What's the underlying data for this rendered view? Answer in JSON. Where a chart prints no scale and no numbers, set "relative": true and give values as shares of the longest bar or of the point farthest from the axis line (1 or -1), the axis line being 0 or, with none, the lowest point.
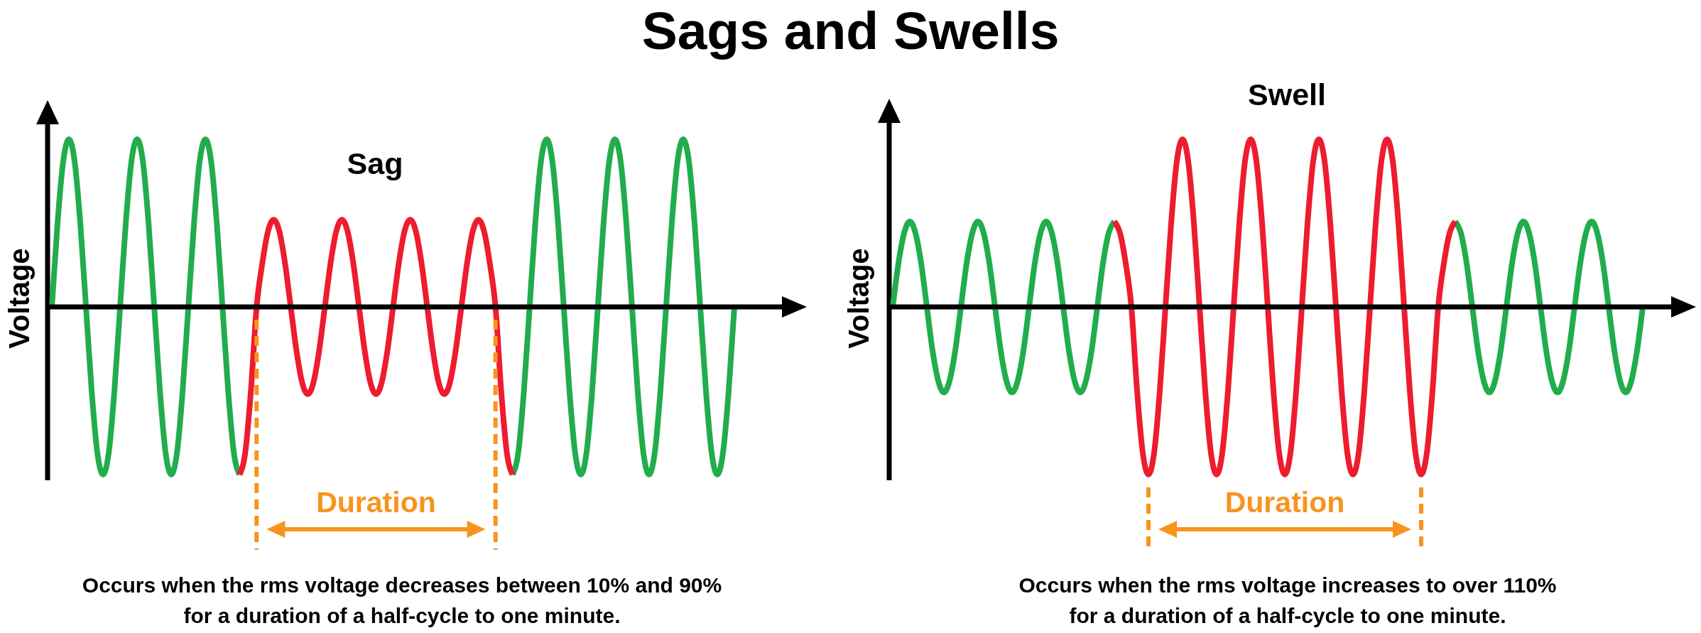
{
  "chart_data": [
    {
      "type": "other",
      "title": "Sags and Swells"
    },
    {
      "type": "line",
      "title": "Sag",
      "ylabel": "Voltage",
      "relative": true,
      "categories": [
        null,
        null,
        null,
        null,
        null,
        null,
        null,
        null,
        null,
        null,
        null,
        null,
        null,
        null,
        null,
        null,
        null,
        null,
        null,
        null,
        null,
        null,
        null,
        null,
        null,
        null,
        null,
        null,
        null,
        null,
        null,
        null,
        null,
        null,
        null,
        null,
        null,
        null,
        null,
        null,
        null,
        null,
        null,
        null,
        null,
        null,
        null,
        null,
        null,
        null,
        null,
        null,
        null,
        null,
        null,
        null,
        null,
        null,
        null,
        null,
        null,
        null,
        null,
        null,
        null,
        null,
        null,
        null,
        null,
        null,
        null,
        null,
        null,
        null,
        null,
        null,
        null,
        null,
        null,
        null,
        null,
        null,
        null,
        null,
        null,
        null,
        null,
        null,
        null,
        null,
        null,
        null,
        null,
        null,
        null,
        null,
        null,
        null,
        null,
        null,
        null,
        null,
        null,
        null,
        null,
        null,
        null,
        null,
        null,
        null,
        null,
        null,
        null,
        null,
        null,
        null,
        null,
        null,
        null,
        null,
        null
      ],
      "series": [
        {
          "color": "#21ad4b",
          "values": [
            0,
            0.5,
            0.87,
            1,
            0.87,
            0.5,
            0,
            -0.5,
            -0.87,
            -1,
            -0.87,
            -0.5,
            0,
            0.5,
            0.87,
            1,
            0.87,
            0.5,
            0,
            -0.5,
            -0.87,
            -1,
            -0.87,
            -0.5,
            0,
            0.5,
            0.87,
            1,
            0.87,
            0.5,
            0,
            -0.5,
            -0.87,
            -1,
            null,
            null,
            null,
            null,
            null,
            null,
            null,
            null,
            null,
            null,
            null,
            null,
            null,
            null,
            null,
            null,
            null,
            null,
            null,
            null,
            null,
            null,
            null,
            null,
            null,
            null,
            null,
            null,
            null,
            null,
            null,
            null,
            null,
            null,
            null,
            null,
            null,
            null,
            null,
            null,
            null,
            null,
            null,
            null,
            null,
            null,
            null,
            -1,
            -0.87,
            -0.5,
            0,
            0.5,
            0.87,
            1,
            0.87,
            0.5,
            0,
            -0.5,
            -0.87,
            -1,
            -0.87,
            -0.5,
            0,
            0.5,
            0.87,
            1,
            0.87,
            0.5,
            0,
            -0.5,
            -0.87,
            -1,
            -0.87,
            -0.5,
            0,
            0.5,
            0.87,
            1,
            0.87,
            0.5,
            0,
            -0.5,
            -0.87,
            -1,
            -0.87,
            -0.5,
            0
          ]
        },
        {
          "color": "#ed1c2e",
          "values": [
            null,
            null,
            null,
            null,
            null,
            null,
            null,
            null,
            null,
            null,
            null,
            null,
            null,
            null,
            null,
            null,
            null,
            null,
            null,
            null,
            null,
            null,
            null,
            null,
            null,
            null,
            null,
            null,
            null,
            null,
            null,
            null,
            null,
            -1,
            -0.87,
            -0.5,
            0,
            0.26,
            0.45,
            0.52,
            0.45,
            0.26,
            0,
            -0.26,
            -0.45,
            -0.52,
            -0.45,
            -0.26,
            0,
            0.26,
            0.45,
            0.52,
            0.45,
            0.26,
            0,
            -0.26,
            -0.45,
            -0.52,
            -0.45,
            -0.26,
            0,
            0.26,
            0.45,
            0.52,
            0.45,
            0.26,
            0,
            -0.26,
            -0.45,
            -0.52,
            -0.45,
            -0.26,
            0,
            0.26,
            0.45,
            0.52,
            0.45,
            0.26,
            0,
            -0.5,
            -0.87,
            -1,
            null,
            null,
            null,
            null,
            null,
            null,
            null,
            null,
            null,
            null,
            null,
            null,
            null,
            null,
            null,
            null,
            null,
            null,
            null,
            null,
            null,
            null,
            null,
            null,
            null,
            null,
            null,
            null,
            null,
            null,
            null,
            null,
            null,
            null,
            null,
            null,
            null,
            null,
            null
          ]
        }
      ],
      "annotations": [
        "Duration",
        "Occurs when the rms voltage decreases between 10% and 90%\nfor a duration of a half-cycle to one minute."
      ]
    },
    {
      "type": "line",
      "title": "Swell",
      "ylabel": "Voltage",
      "relative": true,
      "categories": [
        null,
        null,
        null,
        null,
        null,
        null,
        null,
        null,
        null,
        null,
        null,
        null,
        null,
        null,
        null,
        null,
        null,
        null,
        null,
        null,
        null,
        null,
        null,
        null,
        null,
        null,
        null,
        null,
        null,
        null,
        null,
        null,
        null,
        null,
        null,
        null,
        null,
        null,
        null,
        null,
        null,
        null,
        null,
        null,
        null,
        null,
        null,
        null,
        null,
        null,
        null,
        null,
        null,
        null,
        null,
        null,
        null,
        null,
        null,
        null,
        null,
        null,
        null,
        null,
        null,
        null,
        null,
        null,
        null,
        null,
        null,
        null,
        null,
        null,
        null,
        null,
        null,
        null,
        null,
        null,
        null,
        null,
        null,
        null,
        null,
        null,
        null,
        null,
        null,
        null,
        null,
        null,
        null,
        null,
        null,
        null,
        null,
        null,
        null,
        null,
        null,
        null,
        null,
        null,
        null,
        null,
        null,
        null,
        null,
        null,
        null,
        null,
        null,
        null,
        null,
        null,
        null,
        null,
        null,
        null,
        null,
        null,
        null,
        null,
        null,
        null,
        null,
        null,
        null,
        null,
        null,
        null,
        null
      ],
      "series": [
        {
          "color": "#21ad4b",
          "values": [
            0,
            0.26,
            0.44,
            0.51,
            0.44,
            0.26,
            0,
            -0.26,
            -0.44,
            -0.51,
            -0.44,
            -0.26,
            0,
            0.26,
            0.44,
            0.51,
            0.44,
            0.26,
            0,
            -0.26,
            -0.44,
            -0.51,
            -0.44,
            -0.26,
            0,
            0.26,
            0.44,
            0.51,
            0.44,
            0.26,
            0,
            -0.26,
            -0.44,
            -0.51,
            -0.44,
            -0.26,
            0,
            0.26,
            0.44,
            0.51,
            null,
            null,
            null,
            null,
            null,
            null,
            null,
            null,
            null,
            null,
            null,
            null,
            null,
            null,
            null,
            null,
            null,
            null,
            null,
            null,
            null,
            null,
            null,
            null,
            null,
            null,
            null,
            null,
            null,
            null,
            null,
            null,
            null,
            null,
            null,
            null,
            null,
            null,
            null,
            null,
            null,
            null,
            null,
            null,
            null,
            null,
            null,
            null,
            null,
            null,
            null,
            null,
            null,
            null,
            null,
            null,
            null,
            null,
            null,
            0.51,
            0.44,
            0.26,
            0,
            -0.26,
            -0.44,
            -0.51,
            -0.44,
            -0.26,
            0,
            0.26,
            0.44,
            0.51,
            0.44,
            0.26,
            0,
            -0.26,
            -0.44,
            -0.51,
            -0.44,
            -0.26,
            0,
            0.26,
            0.44,
            0.51,
            0.44,
            0.26,
            0,
            -0.26,
            -0.44,
            -0.51,
            -0.44,
            -0.26,
            0
          ]
        },
        {
          "color": "#ed1c2e",
          "values": [
            null,
            null,
            null,
            null,
            null,
            null,
            null,
            null,
            null,
            null,
            null,
            null,
            null,
            null,
            null,
            null,
            null,
            null,
            null,
            null,
            null,
            null,
            null,
            null,
            null,
            null,
            null,
            null,
            null,
            null,
            null,
            null,
            null,
            null,
            null,
            null,
            null,
            null,
            null,
            0.51,
            0.44,
            0.26,
            0,
            -0.5,
            -0.87,
            -1,
            -0.87,
            -0.5,
            0,
            0.5,
            0.87,
            1,
            0.87,
            0.5,
            0,
            -0.5,
            -0.87,
            -1,
            -0.87,
            -0.5,
            0,
            0.5,
            0.87,
            1,
            0.87,
            0.5,
            0,
            -0.5,
            -0.87,
            -1,
            -0.87,
            -0.5,
            0,
            0.5,
            0.87,
            1,
            0.87,
            0.5,
            0,
            -0.5,
            -0.87,
            -1,
            -0.87,
            -0.5,
            0,
            0.5,
            0.87,
            1,
            0.87,
            0.5,
            0,
            -0.5,
            -0.87,
            -1,
            -0.87,
            -0.5,
            0,
            0.26,
            0.44,
            0.51,
            null,
            null,
            null,
            null,
            null,
            null,
            null,
            null,
            null,
            null,
            null,
            null,
            null,
            null,
            null,
            null,
            null,
            null,
            null,
            null,
            null,
            null,
            null,
            null,
            null,
            null,
            null,
            null,
            null,
            null,
            null,
            null,
            null
          ]
        }
      ],
      "annotations": [
        "Duration",
        "Occurs when the rms voltage increases to over 110%\nfor a duration of a half-cycle to one minute."
      ]
    }
  ]
}
